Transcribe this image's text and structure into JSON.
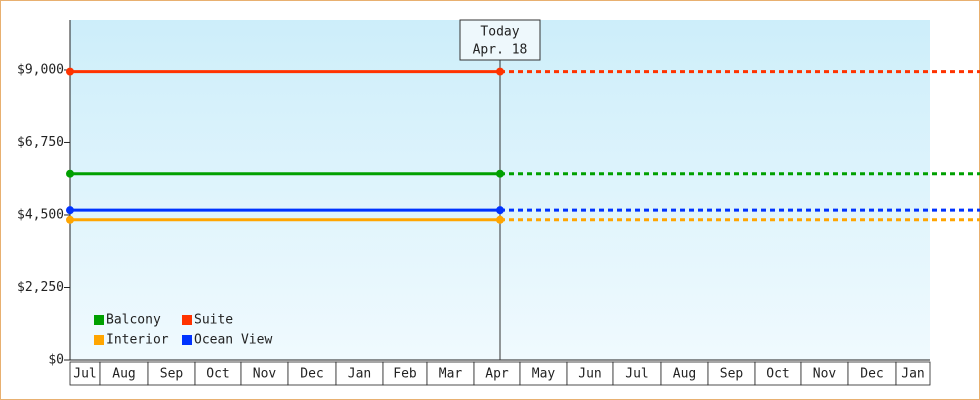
{
  "chart_data": {
    "type": "line",
    "annotation": "Today",
    "x": [
      null,
      "Apr. 18"
    ],
    "categories": [
      "Jul",
      "Aug",
      "Sep",
      "Oct",
      "Nov",
      "Dec",
      "Jan",
      "Feb",
      "Mar",
      "Apr",
      "May",
      "Jun",
      "Jul",
      "Aug",
      "Sep",
      "Oct",
      "Nov",
      "Dec",
      "Jan"
    ],
    "series": [
      {
        "name": "Balcony",
        "color": "#00a000",
        "values": [
          5780,
          5780
        ]
      },
      {
        "name": "Suite",
        "color": "#ff3300",
        "values": [
          8950,
          8950
        ]
      },
      {
        "name": "Interior",
        "color": "#ffa500",
        "values": [
          4350,
          4350
        ]
      },
      {
        "name": "Ocean View",
        "color": "#0033ff",
        "values": [
          4650,
          4650
        ]
      }
    ],
    "ylim": [
      0,
      10550
    ],
    "yticks": [
      {
        "value": 0,
        "label": "$0"
      },
      {
        "value": 2250,
        "label": "$2,250"
      },
      {
        "value": 4500,
        "label": "$4,500"
      },
      {
        "value": 6750,
        "label": "$6,750"
      },
      {
        "value": 9000,
        "label": "$9,000"
      }
    ],
    "projection": true
  }
}
